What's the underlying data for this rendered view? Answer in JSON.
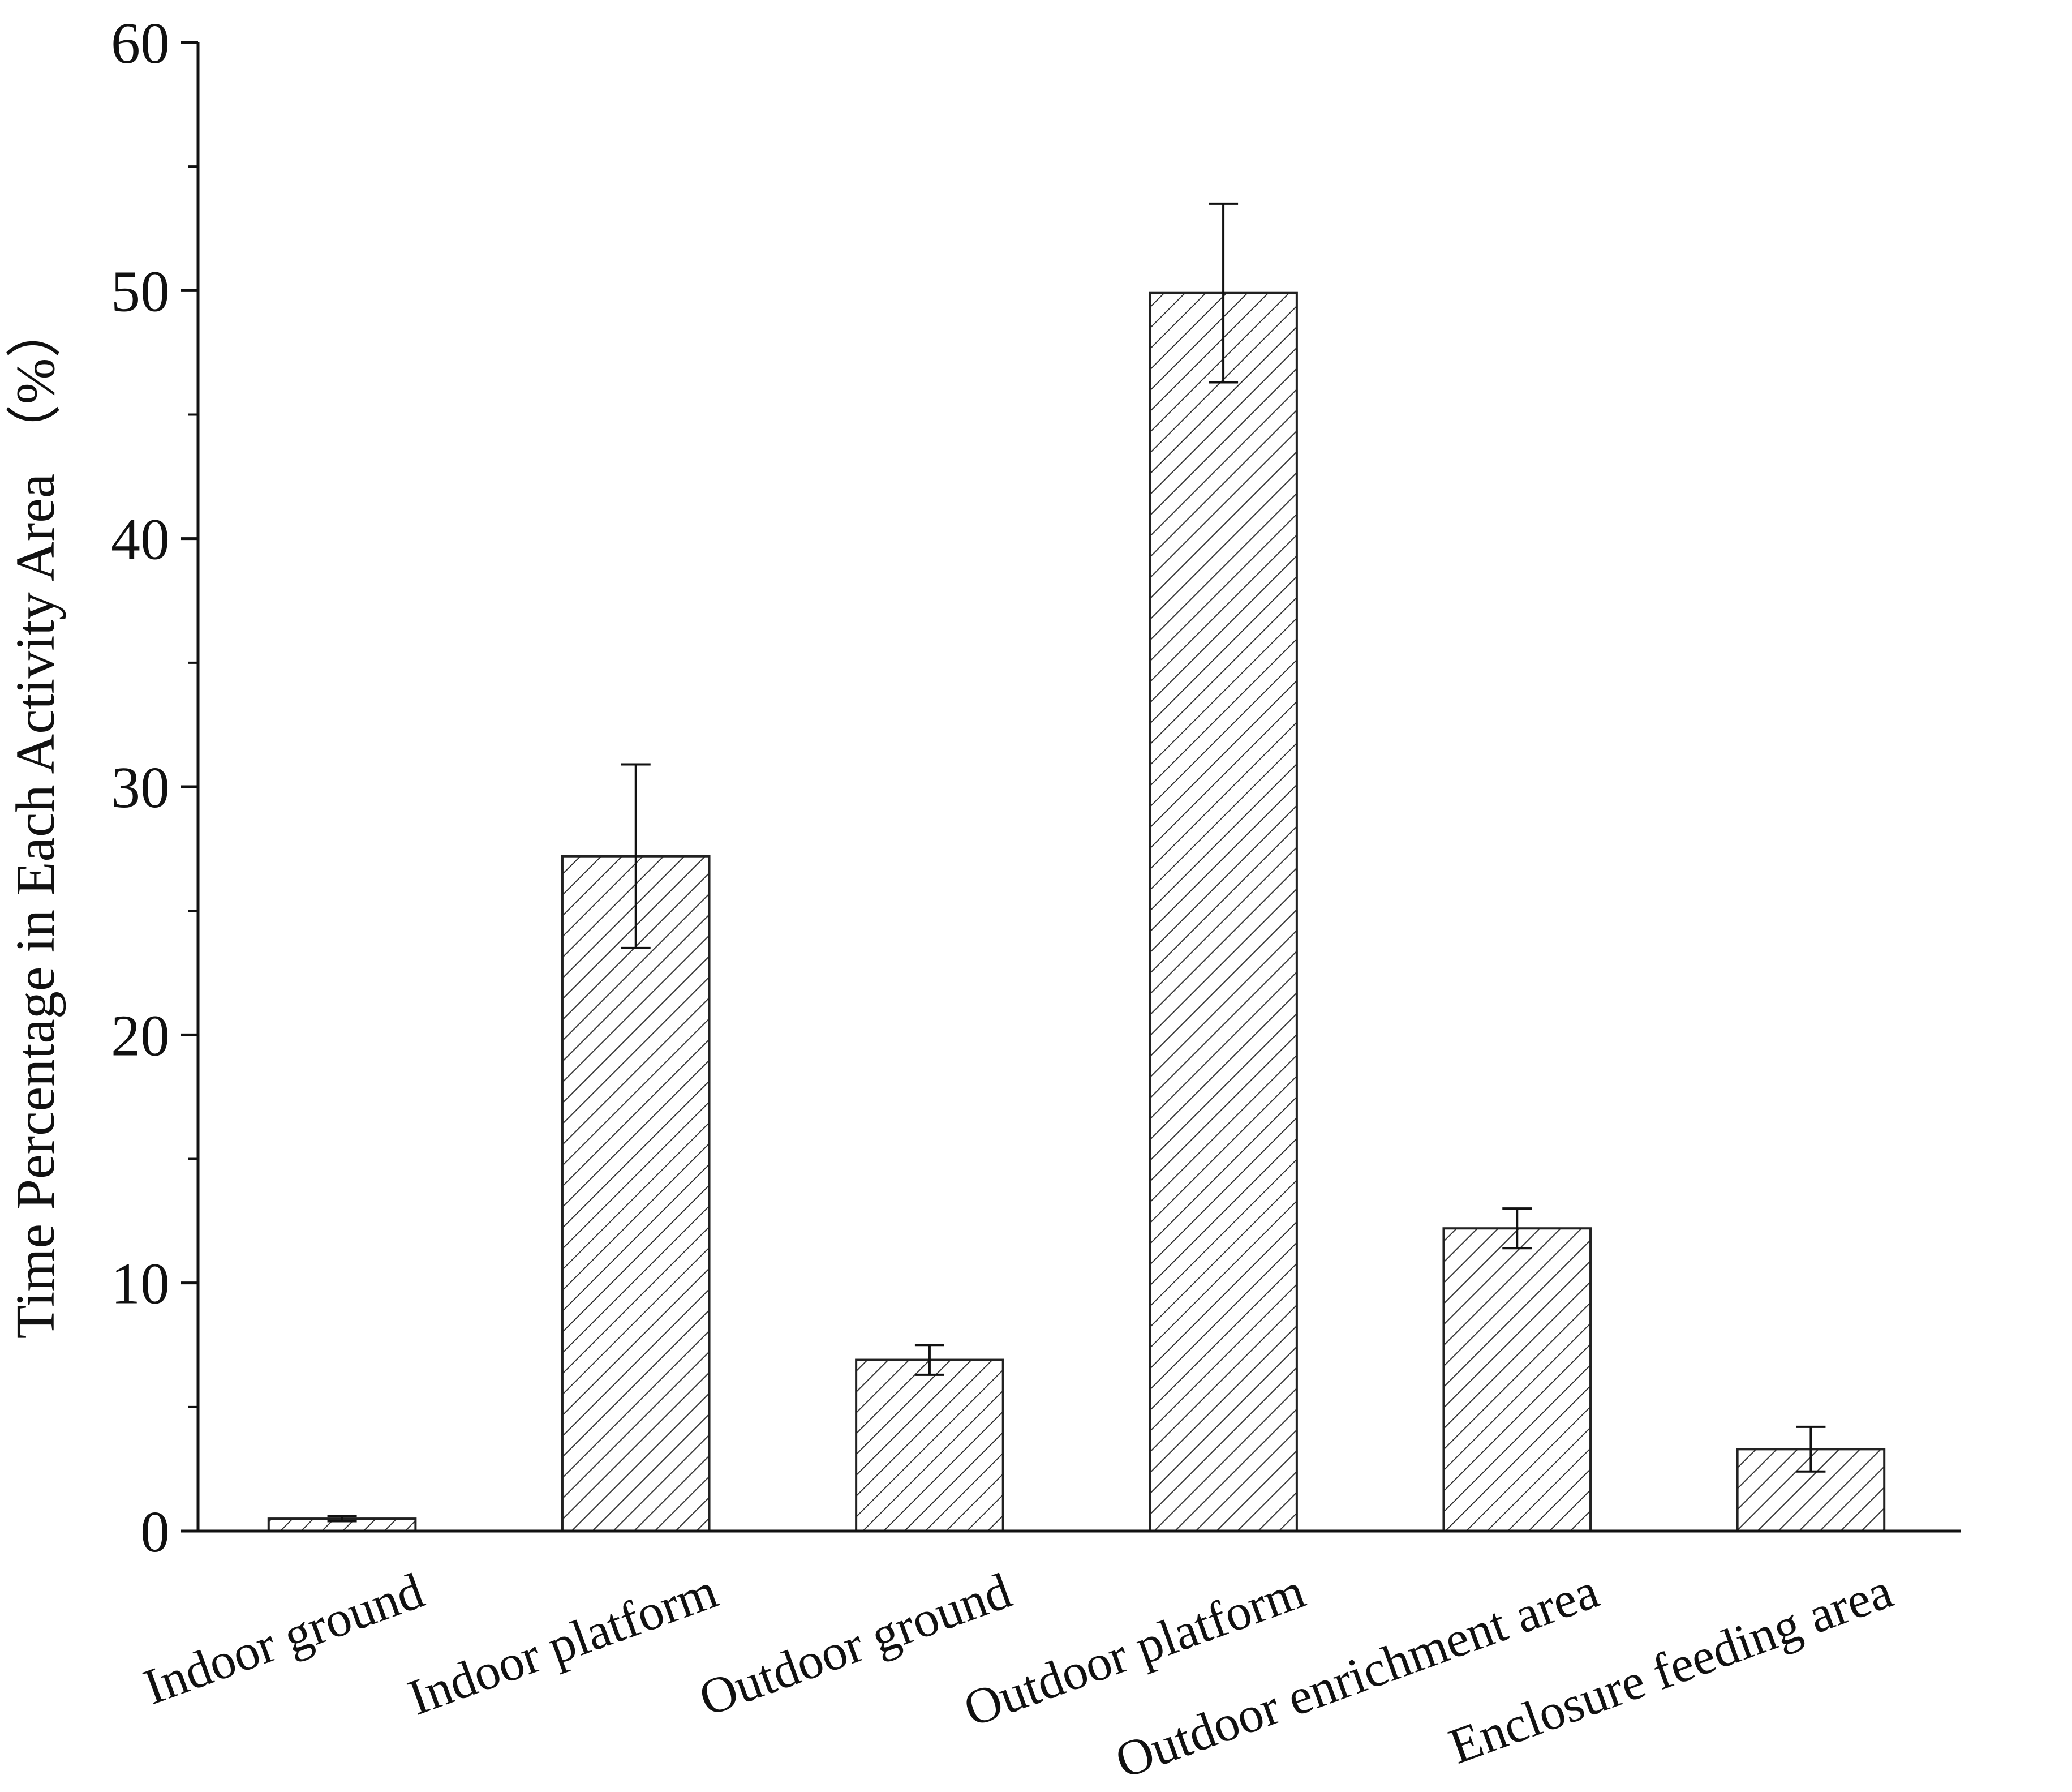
{
  "chart_data": {
    "type": "bar",
    "title": "",
    "xlabel": "",
    "ylabel": "Time Percentage in Each Activity Area （%）",
    "categories": [
      "Indoor ground",
      "Indoor platform",
      "Outdoor ground",
      "Outdoor platform",
      "Outdoor enrichment area",
      "Enclosure feeding area"
    ],
    "values": [
      0.5,
      27.2,
      6.9,
      49.9,
      12.2,
      3.3
    ],
    "errors": [
      0.1,
      3.7,
      0.6,
      3.6,
      0.8,
      0.9
    ],
    "ylim": [
      0,
      60
    ],
    "yticks": [
      0,
      10,
      20,
      30,
      40,
      50,
      60
    ],
    "grid": false,
    "legend": "none",
    "bar_fill": "hatched diagonal",
    "colors": {
      "bar_edge": "#222222",
      "hatch": "#333333",
      "axis": "#111111"
    }
  }
}
